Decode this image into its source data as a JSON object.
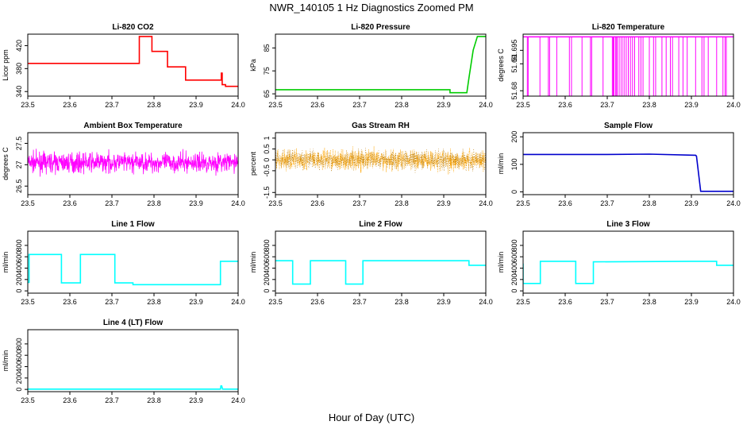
{
  "figure": {
    "title": "NWR_140105  1 Hz Diagnostics Zoomed PM",
    "xlabel": "Hour of Day (UTC)"
  },
  "chart_data": [
    {
      "type": "line",
      "title": "Li-820 CO2",
      "ylabel": "Licor ppm",
      "color": "#ff0000",
      "xlim": [
        23.5,
        24.0
      ],
      "xticks": [
        23.5,
        23.6,
        23.7,
        23.8,
        23.9,
        24.0
      ],
      "ylim": [
        332,
        440
      ],
      "yticks": [
        340,
        380,
        420
      ],
      "series": [
        {
          "x": [
            23.5,
            23.765,
            23.765,
            23.795,
            23.795,
            23.832,
            23.832,
            23.875,
            23.875,
            23.96,
            23.96,
            23.962,
            23.962,
            23.97,
            23.97,
            24.0
          ],
          "y": [
            389,
            389,
            436,
            436,
            410,
            410,
            383,
            383,
            360,
            360,
            372,
            372,
            352,
            352,
            349,
            349
          ]
        }
      ]
    },
    {
      "type": "line",
      "title": "Li-820 Pressure",
      "ylabel": "kPa",
      "color": "#00cc00",
      "xlim": [
        23.5,
        24.0
      ],
      "xticks": [
        23.5,
        23.6,
        23.7,
        23.8,
        23.9,
        24.0
      ],
      "ylim": [
        64,
        91
      ],
      "yticks": [
        65,
        75,
        85
      ],
      "series": [
        {
          "x": [
            23.5,
            23.915,
            23.915,
            23.955,
            23.96,
            23.97,
            23.98,
            24.0
          ],
          "y": [
            66.8,
            66.8,
            65.5,
            65.5,
            72,
            84,
            90,
            90
          ]
        }
      ]
    },
    {
      "type": "line",
      "title": "Li-820 Temperature",
      "ylabel": "degrees C",
      "color": "#ff00ff",
      "xlim": [
        23.5,
        24.0
      ],
      "xticks": [
        23.5,
        23.6,
        23.7,
        23.8,
        23.9,
        24.0
      ],
      "ylim": [
        51.678,
        51.701
      ],
      "yticks": [
        51.68,
        51.69,
        51.695
      ],
      "baseline": 51.7,
      "dip_to": 51.678,
      "series": [
        {
          "name": "",
          "dips_x": [
            23.51,
            23.512,
            23.54,
            23.56,
            23.563,
            23.58,
            23.61,
            23.615,
            23.64,
            23.66,
            23.663,
            23.69,
            23.712,
            23.714,
            23.716,
            23.72,
            23.722,
            23.725,
            23.73,
            23.735,
            23.74,
            23.745,
            23.75,
            23.755,
            23.76,
            23.765,
            23.775,
            23.78,
            23.785,
            23.8,
            23.81,
            23.815,
            23.83,
            23.84,
            23.85,
            23.855,
            23.87,
            23.88,
            23.89,
            23.91,
            23.925,
            23.93,
            23.94,
            23.96,
            23.975,
            23.98,
            23.983
          ]
        }
      ]
    },
    {
      "type": "line",
      "title": "Ambient Box Temperature",
      "ylabel": "degrees C",
      "color": "#ff00ff",
      "xlim": [
        23.5,
        24.0
      ],
      "xticks": [
        23.5,
        23.6,
        23.7,
        23.8,
        23.9,
        24.0
      ],
      "ylim": [
        26.3,
        27.75
      ],
      "yticks": [
        26.5,
        27.0,
        27.5
      ],
      "series": [
        {
          "mean": 27.05,
          "noise_sd": 0.16,
          "min": 26.4,
          "max": 27.65
        }
      ]
    },
    {
      "type": "scatter",
      "title": "Gas Stream RH",
      "ylabel": "percent",
      "color": "#ffa500",
      "xlim": [
        23.5,
        24.0
      ],
      "xticks": [
        23.5,
        23.6,
        23.7,
        23.8,
        23.9,
        24.0
      ],
      "ylim": [
        -1.6,
        1.25
      ],
      "yticks": [
        -1.5,
        -0.5,
        0.0,
        0.5,
        1.0
      ],
      "series": [
        {
          "mean": 0.0,
          "noise_sd": 0.35,
          "min": -1.2,
          "max": 1.15
        }
      ]
    },
    {
      "type": "line",
      "title": "Sample Flow",
      "ylabel": "ml/min",
      "color": "#0000cc",
      "xlim": [
        23.5,
        24.0
      ],
      "xticks": [
        23.5,
        23.6,
        23.7,
        23.8,
        23.9,
        24.0
      ],
      "ylim": [
        -10,
        215
      ],
      "yticks": [
        0,
        100,
        200
      ],
      "series": [
        {
          "x": [
            23.5,
            23.7,
            23.8,
            23.91,
            23.912,
            23.922,
            24.0
          ],
          "y": [
            136,
            136,
            137,
            133,
            130,
            2,
            2
          ]
        }
      ]
    },
    {
      "type": "line",
      "title": "Line 1 Flow",
      "ylabel": "ml/min",
      "color": "#00ffff",
      "xlim": [
        23.5,
        24.0
      ],
      "xticks": [
        23.5,
        23.6,
        23.7,
        23.8,
        23.9,
        24.0
      ],
      "ylim": [
        -40,
        1050
      ],
      "yticks": [
        0,
        200,
        400,
        600,
        800
      ],
      "series": [
        {
          "x": [
            23.5,
            23.503,
            23.503,
            23.58,
            23.58,
            23.625,
            23.625,
            23.707,
            23.707,
            23.75,
            23.75,
            23.958,
            23.958,
            24.0
          ],
          "y": [
            150,
            150,
            640,
            640,
            140,
            140,
            640,
            640,
            140,
            140,
            110,
            110,
            520,
            520
          ]
        }
      ]
    },
    {
      "type": "line",
      "title": "Line 2 Flow",
      "ylabel": "ml/min",
      "color": "#00ffff",
      "xlim": [
        23.5,
        24.0
      ],
      "xticks": [
        23.5,
        23.6,
        23.7,
        23.8,
        23.9,
        24.0
      ],
      "ylim": [
        -40,
        1050
      ],
      "yticks": [
        0,
        200,
        400,
        600,
        800
      ],
      "series": [
        {
          "x": [
            23.5,
            23.541,
            23.541,
            23.583,
            23.583,
            23.667,
            23.667,
            23.708,
            23.708,
            23.96,
            23.96,
            24.0
          ],
          "y": [
            530,
            530,
            120,
            120,
            530,
            530,
            120,
            120,
            530,
            530,
            450,
            450
          ]
        }
      ]
    },
    {
      "type": "line",
      "title": "Line 3 Flow",
      "ylabel": "ml/min",
      "color": "#00ffff",
      "xlim": [
        23.5,
        24.0
      ],
      "xticks": [
        23.5,
        23.6,
        23.7,
        23.8,
        23.9,
        24.0
      ],
      "ylim": [
        -40,
        1050
      ],
      "yticks": [
        0,
        200,
        400,
        600,
        800
      ],
      "series": [
        {
          "x": [
            23.5,
            23.5,
            23.5,
            23.541,
            23.541,
            23.625,
            23.625,
            23.667,
            23.667,
            23.9,
            23.96,
            23.96,
            24.0
          ],
          "y": [
            480,
            480,
            130,
            130,
            520,
            520,
            130,
            130,
            510,
            520,
            520,
            450,
            450
          ]
        }
      ]
    },
    {
      "type": "line",
      "title": "Line 4 (LT) Flow",
      "ylabel": "ml/min",
      "color": "#00ffff",
      "xlim": [
        23.5,
        24.0
      ],
      "xticks": [
        23.5,
        23.6,
        23.7,
        23.8,
        23.9,
        24.0
      ],
      "ylim": [
        -40,
        1050
      ],
      "yticks": [
        0,
        200,
        400,
        600,
        800
      ],
      "series": [
        {
          "x": [
            23.5,
            23.958,
            23.959,
            23.961,
            23.963,
            24.0
          ],
          "y": [
            5,
            5,
            60,
            60,
            5,
            5
          ]
        }
      ]
    }
  ]
}
